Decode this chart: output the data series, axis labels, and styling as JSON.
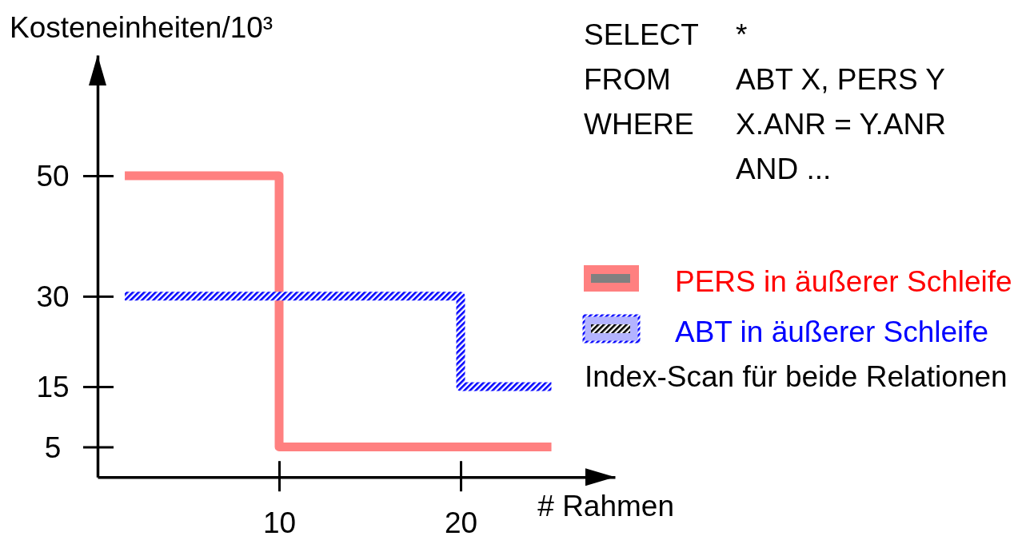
{
  "chart_data": {
    "type": "step",
    "xlabel": "# Rahmen",
    "ylabel": "Kosteneinheiten/10³",
    "x": [
      1.5,
      10,
      25
    ],
    "series": [
      {
        "name": "PERS in äußerer Schleife",
        "color": "#ff8080",
        "values": [
          50,
          5,
          5
        ]
      },
      {
        "name": "ABT in äußerer Schleife",
        "color": "#0000ff",
        "x": [
          1.5,
          20,
          25
        ],
        "values": [
          30,
          15,
          15
        ]
      }
    ],
    "xlim": [
      0,
      28.5
    ],
    "ylim": [
      0,
      70
    ],
    "xticks": [
      10,
      20
    ],
    "yticks": [
      5,
      15,
      30,
      50
    ],
    "legend": "right",
    "annotations": [
      "SELECT\t*",
      "FROM\tABT X, PERS Y",
      "WHERE\tX.ANR = Y.ANR",
      "\tAND ...",
      "Index-Scan für beide Relationen"
    ]
  }
}
